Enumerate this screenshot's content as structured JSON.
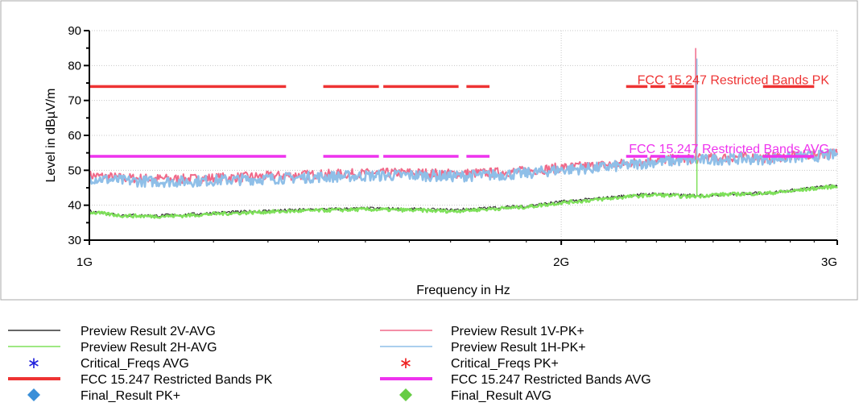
{
  "chart_data": {
    "type": "line",
    "xlabel": "Frequency in Hz",
    "ylabel": "Level in dBµV/m",
    "x_scale": "log",
    "xlim": [
      1000000000,
      3000000000
    ],
    "ylim": [
      30,
      90
    ],
    "x_ticks": [
      {
        "value": 1000000000,
        "label": "1G"
      },
      {
        "value": 2000000000,
        "label": "2G"
      },
      {
        "value": 3000000000,
        "label": "3G"
      }
    ],
    "y_ticks": [
      30,
      40,
      50,
      60,
      70,
      80,
      90
    ],
    "y_tick_labels": [
      "30",
      "40",
      "50",
      "60",
      "70",
      "80",
      "90"
    ],
    "grid": true,
    "frequency_unit": "GHz",
    "series": [
      {
        "name": "Preview Result 1V-PK+",
        "color": "#f06a8a",
        "x": [
          1.0,
          1.05,
          1.1,
          1.15,
          1.2,
          1.3,
          1.4,
          1.5,
          1.6,
          1.7,
          1.8,
          1.9,
          2.0,
          2.1,
          2.2,
          2.3,
          2.4,
          2.5,
          2.6,
          2.7,
          2.8,
          2.9,
          3.0
        ],
        "y": [
          48.5,
          47.8,
          47.6,
          47.5,
          47.8,
          48.3,
          48.8,
          49.1,
          49.3,
          49.0,
          49.3,
          49.8,
          50.8,
          51.3,
          52.0,
          53.0,
          53.2,
          53.5,
          53.8,
          53.6,
          54.0,
          54.5,
          55.0
        ]
      },
      {
        "name": "Preview Result 1H-PK+",
        "color": "#8fbfe8",
        "x": [
          1.0,
          1.05,
          1.1,
          1.15,
          1.2,
          1.3,
          1.4,
          1.5,
          1.6,
          1.7,
          1.8,
          1.9,
          2.0,
          2.1,
          2.2,
          2.3,
          2.4,
          2.44,
          2.441,
          2.442,
          2.45,
          2.5,
          2.6,
          2.7,
          2.8,
          2.9,
          3.0
        ],
        "y": [
          47.8,
          47.0,
          46.8,
          46.8,
          47.1,
          47.6,
          48.1,
          48.4,
          48.6,
          48.3,
          48.6,
          49.1,
          50.2,
          50.6,
          51.4,
          52.5,
          52.8,
          52.9,
          85.0,
          53.0,
          52.9,
          53.1,
          53.3,
          53.2,
          53.6,
          54.0,
          54.5
        ]
      },
      {
        "name": "Preview Result 2V-AVG",
        "color": "#333333",
        "x": [
          1.0,
          1.05,
          1.1,
          1.15,
          1.2,
          1.3,
          1.4,
          1.5,
          1.6,
          1.7,
          1.8,
          1.9,
          2.0,
          2.1,
          2.2,
          2.3,
          2.4,
          2.5,
          2.6,
          2.7,
          2.8,
          2.9,
          3.0
        ],
        "y": [
          38.3,
          37.2,
          37.0,
          37.3,
          37.8,
          38.4,
          38.8,
          39.1,
          38.9,
          38.6,
          39.2,
          39.8,
          41.0,
          41.8,
          42.7,
          43.3,
          42.8,
          42.9,
          43.3,
          43.5,
          44.2,
          45.0,
          45.7
        ]
      },
      {
        "name": "Preview Result 2H-AVG",
        "color": "#7ee05a",
        "x": [
          1.0,
          1.05,
          1.1,
          1.15,
          1.2,
          1.3,
          1.4,
          1.5,
          1.6,
          1.7,
          1.8,
          1.9,
          2.0,
          2.1,
          2.2,
          2.3,
          2.4,
          2.44,
          2.441,
          2.442,
          2.45,
          2.5,
          2.6,
          2.7,
          2.8,
          2.9,
          3.0
        ],
        "y": [
          38.0,
          37.0,
          36.8,
          37.0,
          37.5,
          38.1,
          38.5,
          38.8,
          38.6,
          38.3,
          38.9,
          39.5,
          40.7,
          41.5,
          42.4,
          43.0,
          42.5,
          42.6,
          53.0,
          42.6,
          42.6,
          43.0,
          43.2,
          43.4,
          44.0,
          44.8,
          45.4
        ]
      }
    ],
    "spike": {
      "x": 2.441,
      "pk_top": 85.0,
      "avg_top": 53.0
    },
    "limits": [
      {
        "name": "FCC 15.247 Restricted Bands PK",
        "color": "#ee3333",
        "level": 74,
        "segments": [
          [
            1.0,
            1.335
          ],
          [
            1.41,
            1.53
          ],
          [
            1.54,
            1.72
          ],
          [
            1.74,
            1.8
          ],
          [
            2.2,
            2.27
          ],
          [
            2.28,
            2.33
          ],
          [
            2.35,
            2.43
          ],
          [
            2.69,
            2.9
          ]
        ],
        "label": "FCC 15.247 Restricted Bands PK"
      },
      {
        "name": "FCC 15.247 Restricted Bands AVG",
        "color": "#ee33ee",
        "level": 54,
        "segments": [
          [
            1.0,
            1.335
          ],
          [
            1.41,
            1.53
          ],
          [
            1.54,
            1.72
          ],
          [
            1.74,
            1.8
          ],
          [
            2.2,
            2.27
          ],
          [
            2.28,
            2.33
          ],
          [
            2.35,
            2.43
          ],
          [
            2.69,
            2.9
          ]
        ],
        "label": "FCC 15.247 Restricted Bands AVG"
      }
    ],
    "legend": {
      "placement": "bottom",
      "columns": [
        [
          {
            "label": "Preview Result 2V-AVG",
            "marker": "line",
            "color": "#333333"
          },
          {
            "label": "Preview Result 2H-AVG",
            "marker": "line",
            "color": "#7ee05a"
          },
          {
            "label": "Critical_Freqs AVG",
            "marker": "asterisk",
            "color": "#2222dd"
          },
          {
            "label": "FCC 15.247 Restricted Bands PK",
            "marker": "thick-line",
            "color": "#ee3333"
          },
          {
            "label": "Final_Result PK+",
            "marker": "diamond",
            "color": "#3a8fd8"
          }
        ],
        [
          {
            "label": "Preview Result 1V-PK+",
            "marker": "line",
            "color": "#f06a8a"
          },
          {
            "label": "Preview Result 1H-PK+",
            "marker": "line",
            "color": "#8fbfe8"
          },
          {
            "label": "Critical_Freqs PK+",
            "marker": "asterisk",
            "color": "#ee2222"
          },
          {
            "label": "FCC 15.247 Restricted Bands AVG",
            "marker": "thick-line",
            "color": "#ee33ee"
          },
          {
            "label": "Final_Result AVG",
            "marker": "diamond",
            "color": "#66cc44"
          }
        ]
      ]
    }
  }
}
